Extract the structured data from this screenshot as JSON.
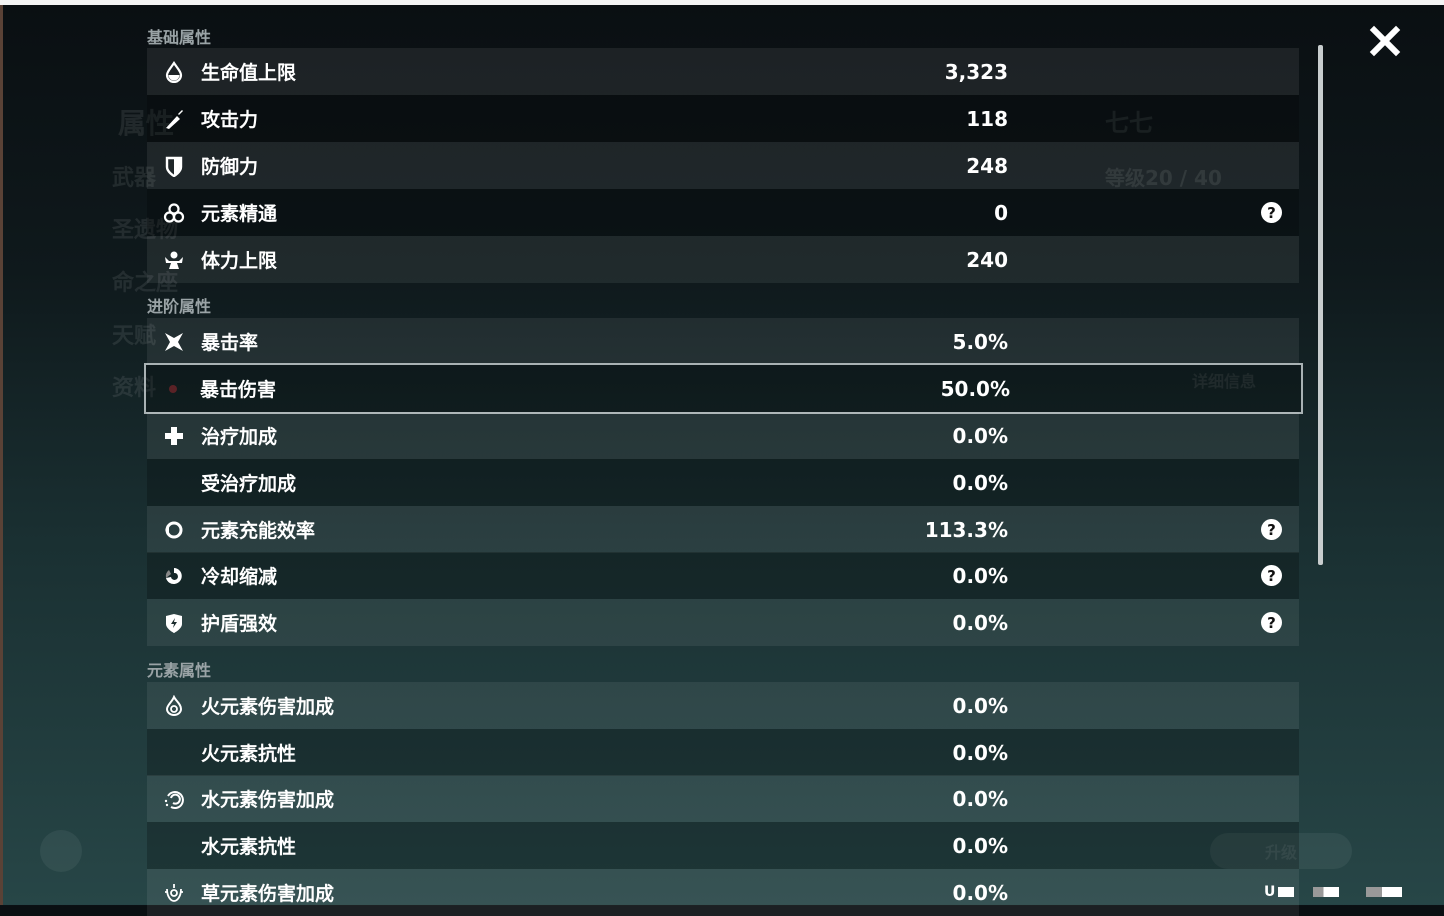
{
  "background": {
    "left_menu": [
      "属性",
      "武器",
      "圣遗物",
      "命之座",
      "天赋",
      "资料"
    ],
    "character_name": "七七",
    "level": "等级20 / 40",
    "details_button": "详细信息",
    "upgrade_button": "升级"
  },
  "sections": [
    {
      "title": "基础属性",
      "rows": [
        {
          "icon": "hp-drop-icon",
          "label": "生命值上限",
          "value": "3,323",
          "help": false
        },
        {
          "icon": "sword-icon",
          "label": "攻击力",
          "value": "118",
          "help": false
        },
        {
          "icon": "shield-icon",
          "label": "防御力",
          "value": "248",
          "help": false
        },
        {
          "icon": "elemental-mastery-icon",
          "label": "元素精通",
          "value": "0",
          "help": true
        },
        {
          "icon": "stamina-icon",
          "label": "体力上限",
          "value": "240",
          "help": false
        }
      ]
    },
    {
      "title": "进阶属性",
      "rows": [
        {
          "icon": "crit-rate-icon",
          "label": "暴击率",
          "value": "5.0%",
          "help": false
        },
        {
          "icon": "crit-dmg-icon",
          "label": "暴击伤害",
          "value": "50.0%",
          "help": false,
          "selected": true
        },
        {
          "icon": "healing-cross-icon",
          "label": "治疗加成",
          "value": "0.0%",
          "help": false
        },
        {
          "icon": "",
          "label": "受治疗加成",
          "value": "0.0%",
          "help": false
        },
        {
          "icon": "energy-recharge-icon",
          "label": "元素充能效率",
          "value": "113.3%",
          "help": true
        },
        {
          "icon": "cooldown-icon",
          "label": "冷却缩减",
          "value": "0.0%",
          "help": true
        },
        {
          "icon": "shield-strength-icon",
          "label": "护盾强效",
          "value": "0.0%",
          "help": true
        }
      ]
    },
    {
      "title": "元素属性",
      "rows": [
        {
          "icon": "pyro-icon",
          "label": "火元素伤害加成",
          "value": "0.0%",
          "help": false
        },
        {
          "icon": "",
          "label": "火元素抗性",
          "value": "0.0%",
          "help": false
        },
        {
          "icon": "hydro-icon",
          "label": "水元素伤害加成",
          "value": "0.0%",
          "help": false
        },
        {
          "icon": "",
          "label": "水元素抗性",
          "value": "0.0%",
          "help": false
        },
        {
          "icon": "dendro-icon",
          "label": "草元素伤害加成",
          "value": "0.0%",
          "help": false
        }
      ]
    }
  ],
  "help_glyph": "?",
  "status_text": "U"
}
